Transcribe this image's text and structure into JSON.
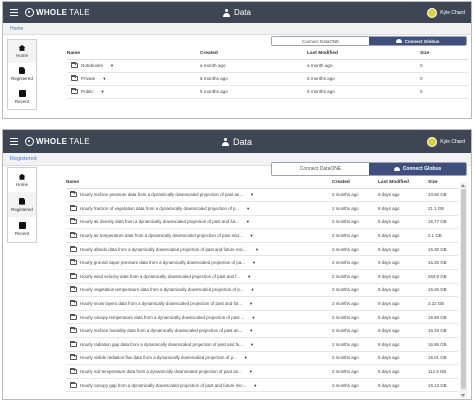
{
  "brand": {
    "bold": "WHOLE",
    "thin": "TALE"
  },
  "panel1": {
    "title": "Data",
    "user": "Kyle Chard",
    "breadcrumb": "Home",
    "nav": [
      {
        "label": "Home",
        "icon": "home-icon"
      },
      {
        "label": "Registered",
        "icon": "file-icon"
      },
      {
        "label": "Recent",
        "icon": "recent-icon"
      }
    ],
    "connect_dataone": "Connect DataONE",
    "connect_globus": "Connect Globus",
    "columns": {
      "name": "Name",
      "created": "Created",
      "modified": "Last Modified",
      "size": "Size"
    },
    "rows": [
      {
        "name": "Notebooks",
        "created": "a month ago",
        "modified": "a month ago",
        "size": "0"
      },
      {
        "name": "Private",
        "created": "5 months ago",
        "modified": "5 months ago",
        "size": "0"
      },
      {
        "name": "Public",
        "created": "5 months ago",
        "modified": "5 months ago",
        "size": "0"
      }
    ]
  },
  "panel2": {
    "title": "Data",
    "user": "Kyle Chard",
    "breadcrumb": "Registered",
    "nav": [
      {
        "label": "Home",
        "icon": "home-icon"
      },
      {
        "label": "Registered",
        "icon": "file-icon"
      },
      {
        "label": "Recent",
        "icon": "recent-icon"
      }
    ],
    "connect_dataone": "Connect DataONE",
    "connect_globus": "Connect Globus",
    "columns": {
      "name": "Name",
      "created": "Created",
      "modified": "Last Modified",
      "size": "Size"
    },
    "rows": [
      {
        "name": "Hourly surface pressure data from a dynamically downscaled projection of past an...",
        "created": "2 months ago",
        "modified": "9 days ago",
        "size": "23.65 GB"
      },
      {
        "name": "Hourly fraction of vegetation data from a dynamically downscaled projection of p...",
        "created": "2 months ago",
        "modified": "9 days ago",
        "size": "21.1 GB"
      },
      {
        "name": "Hourly air density data from a dynamically downscaled projection of past and fut...",
        "created": "2 months ago",
        "modified": "9 days ago",
        "size": "16.77 GB"
      },
      {
        "name": "Hourly air temperature data from a dynamically downscaled projection of past and...",
        "created": "2 months ago",
        "modified": "9 days ago",
        "size": "2.1 GB"
      },
      {
        "name": "Hourly albedo data from a dynamically downscaled projection of past and future microc...",
        "created": "2 months ago",
        "modified": "9 days ago",
        "size": "16.36 GB"
      },
      {
        "name": "Hourly ground vapor pressure data from a dynamically downscaled projection of pa...",
        "created": "2 months ago",
        "modified": "9 days ago",
        "size": "15.25 GB"
      },
      {
        "name": "Hourly wind velocity data from a dynamically downscaled projection of past and f...",
        "created": "2 months ago",
        "modified": "9 days ago",
        "size": "263.9 GB"
      },
      {
        "name": "Hourly vegetation temperature data from a dynamically downscaled projection of p...",
        "created": "2 months ago",
        "modified": "9 days ago",
        "size": "16.26 GB"
      },
      {
        "name": "Hourly snow layers data from a dynamically downscaled projection of past and fut...",
        "created": "2 months ago",
        "modified": "9 days ago",
        "size": "2.22 GB"
      },
      {
        "name": "Hourly canopy temperature data from a dynamically downscaled projection of past ...",
        "created": "2 months ago",
        "modified": "9 days ago",
        "size": "16.68 GB"
      },
      {
        "name": "Hourly surface humidity data from a dynamically downscaled projection of past an...",
        "created": "2 months ago",
        "modified": "9 days ago",
        "size": "16.29 GB"
      },
      {
        "name": "Hourly radiation gap data from a dynamically downscaled projection of past and fu...",
        "created": "2 months ago",
        "modified": "9 days ago",
        "size": "16.86 GB"
      },
      {
        "name": "Hourly visible radiation flux data from a dynamically downscaled projection of p...",
        "created": "2 months ago",
        "modified": "9 days ago",
        "size": "16.01 GB"
      },
      {
        "name": "Hourly soil temperature data from a dynamically downscaled projection of past an...",
        "created": "2 months ago",
        "modified": "9 days ago",
        "size": "112.9 GB"
      },
      {
        "name": "Hourly canopy gap from a dynamically downscaled projection of past and future mic...",
        "created": "2 months ago",
        "modified": "9 days ago",
        "size": "16.13 GB"
      }
    ]
  }
}
